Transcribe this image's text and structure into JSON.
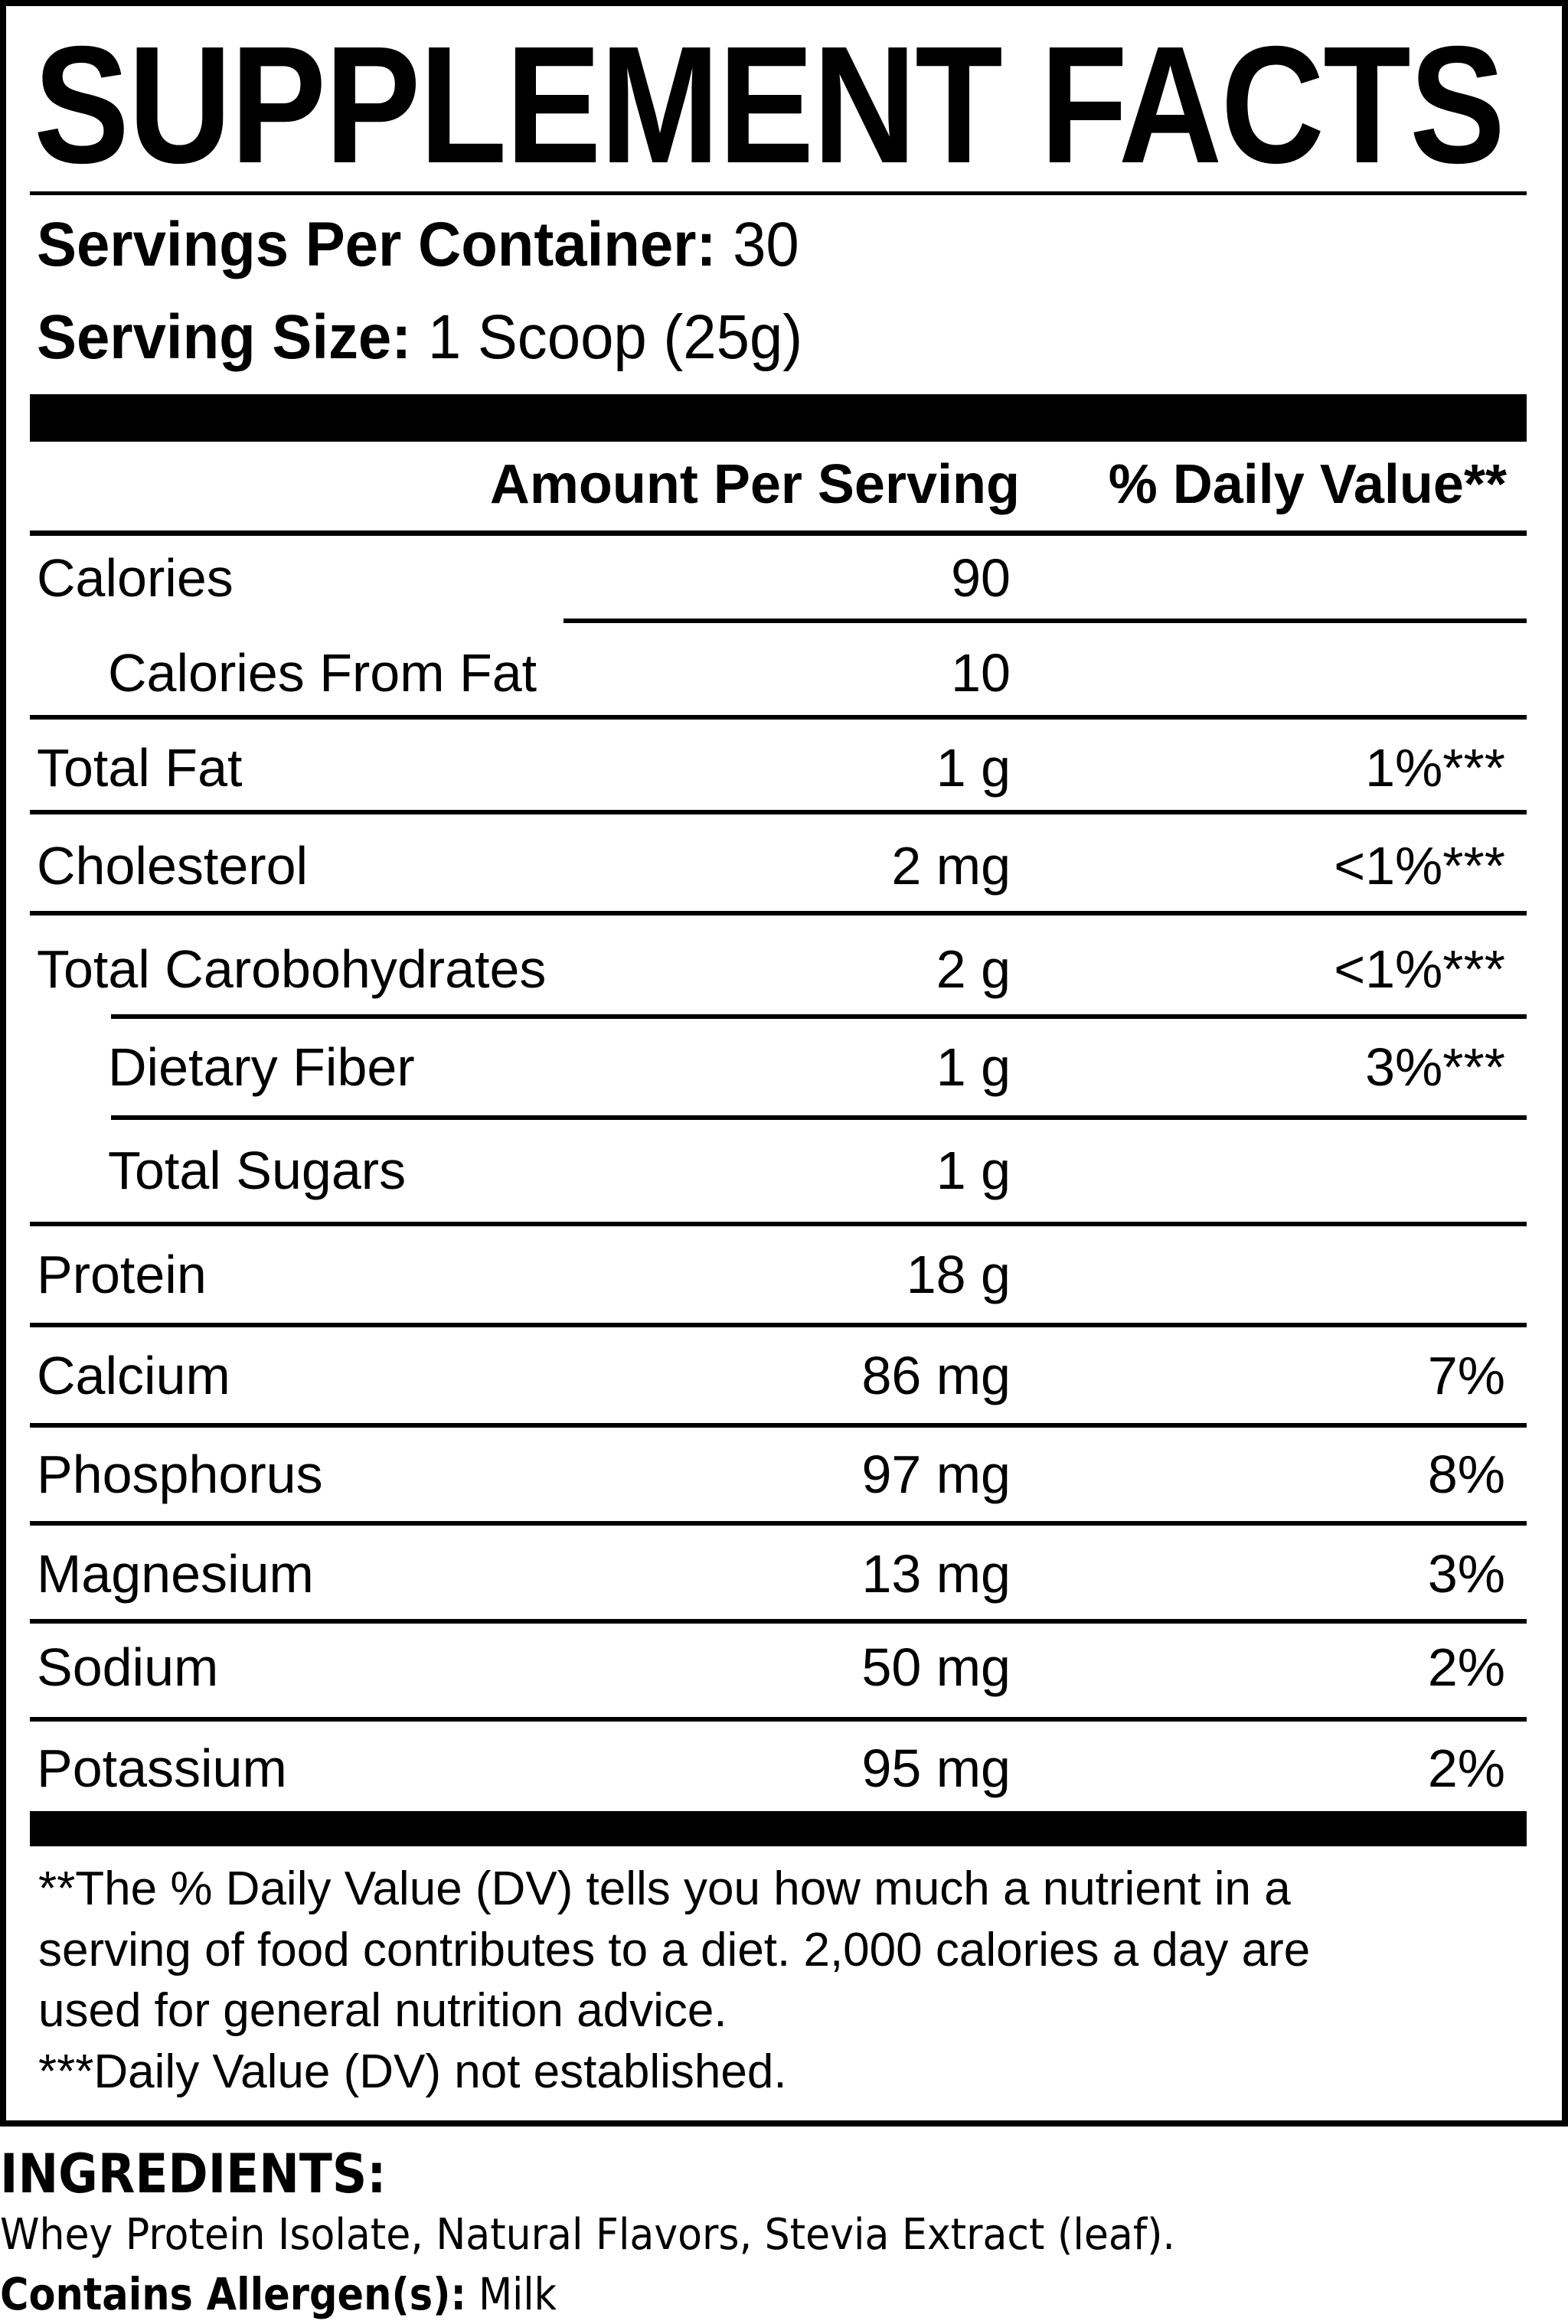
{
  "title": "SUPPLEMENT FACTS",
  "servings_per_container": {
    "label": "Servings Per Container:",
    "value": "30"
  },
  "serving_size": {
    "label": "Serving Size:",
    "value": "1 Scoop (25g)"
  },
  "table_header": {
    "amount": "Amount Per Serving",
    "daily_value": "% Daily Value**"
  },
  "rows": [
    {
      "label": "Calories",
      "amount": "90",
      "dv": "",
      "sub": false
    },
    {
      "label": "Calories From Fat",
      "amount": "10",
      "dv": "",
      "sub": true
    },
    {
      "label": "Total Fat",
      "amount": "1 g",
      "dv": "1%***",
      "sub": false
    },
    {
      "label": "Cholesterol",
      "amount": "2 mg",
      "dv": "<1%***",
      "sub": false
    },
    {
      "label": "Total Carobohydrates",
      "amount": "2 g",
      "dv": "<1%***",
      "sub": false
    },
    {
      "label": "Dietary Fiber",
      "amount": "1 g",
      "dv": "3%***",
      "sub": true
    },
    {
      "label": "Total Sugars",
      "amount": "1 g",
      "dv": "",
      "sub": true
    },
    {
      "label": "Protein",
      "amount": "18 g",
      "dv": "",
      "sub": false
    },
    {
      "label": "Calcium",
      "amount": "86 mg",
      "dv": "7%",
      "sub": false
    },
    {
      "label": "Phosphorus",
      "amount": "97 mg",
      "dv": "8%",
      "sub": false
    },
    {
      "label": "Magnesium",
      "amount": "13 mg",
      "dv": "3%",
      "sub": false
    },
    {
      "label": "Sodium",
      "amount": "50 mg",
      "dv": "2%",
      "sub": false
    },
    {
      "label": "Potassium",
      "amount": "95 mg",
      "dv": "2%",
      "sub": false
    }
  ],
  "footnotes": [
    "**The % Daily Value (DV) tells you how much a nutrient in a",
    "serving of food contributes to a diet. 2,000 calories a day are",
    "used for general nutrition advice.",
    "***Daily Value (DV) not established."
  ],
  "ingredients": {
    "heading": "INGREDIENTS:",
    "text": "Whey Protein Isolate, Natural Flavors, Stevia Extract (leaf).",
    "allergen_label": "Contains Allergen(s):",
    "allergen_value": "Milk"
  }
}
